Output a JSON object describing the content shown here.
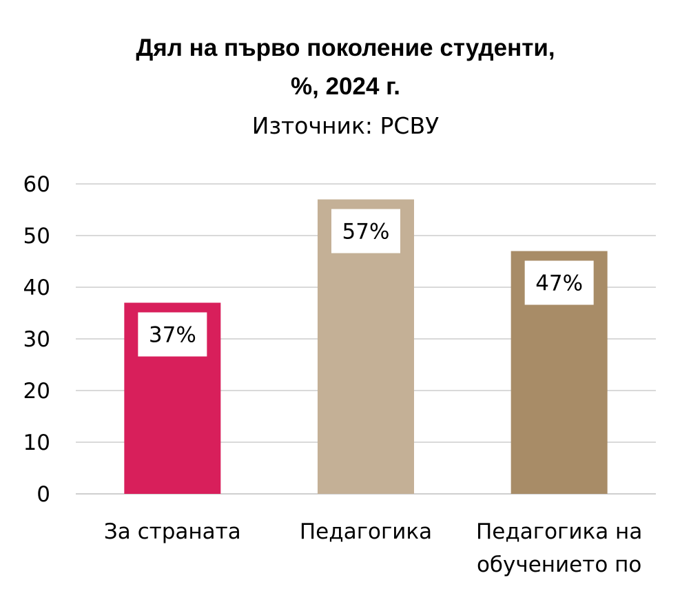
{
  "chart_data": {
    "type": "bar",
    "title": "Дял на първо поколение студенти,\n%, 2024 г.",
    "subtitle": "Източник: РСВУ",
    "categories": [
      [
        "За страната"
      ],
      [
        "Педагогика"
      ],
      [
        "Педагогика на",
        "обучението по"
      ]
    ],
    "values": [
      37,
      57,
      47
    ],
    "data_labels": [
      "37%",
      "57%",
      "47%"
    ],
    "colors": [
      "#d81f5b",
      "#c4b096",
      "#a88c67"
    ],
    "ylim": [
      0,
      60
    ],
    "yticks": [
      "0",
      "10",
      "20",
      "30",
      "40",
      "50",
      "60"
    ],
    "xlabel": "",
    "ylabel": "",
    "grid": true,
    "legend": "none"
  }
}
